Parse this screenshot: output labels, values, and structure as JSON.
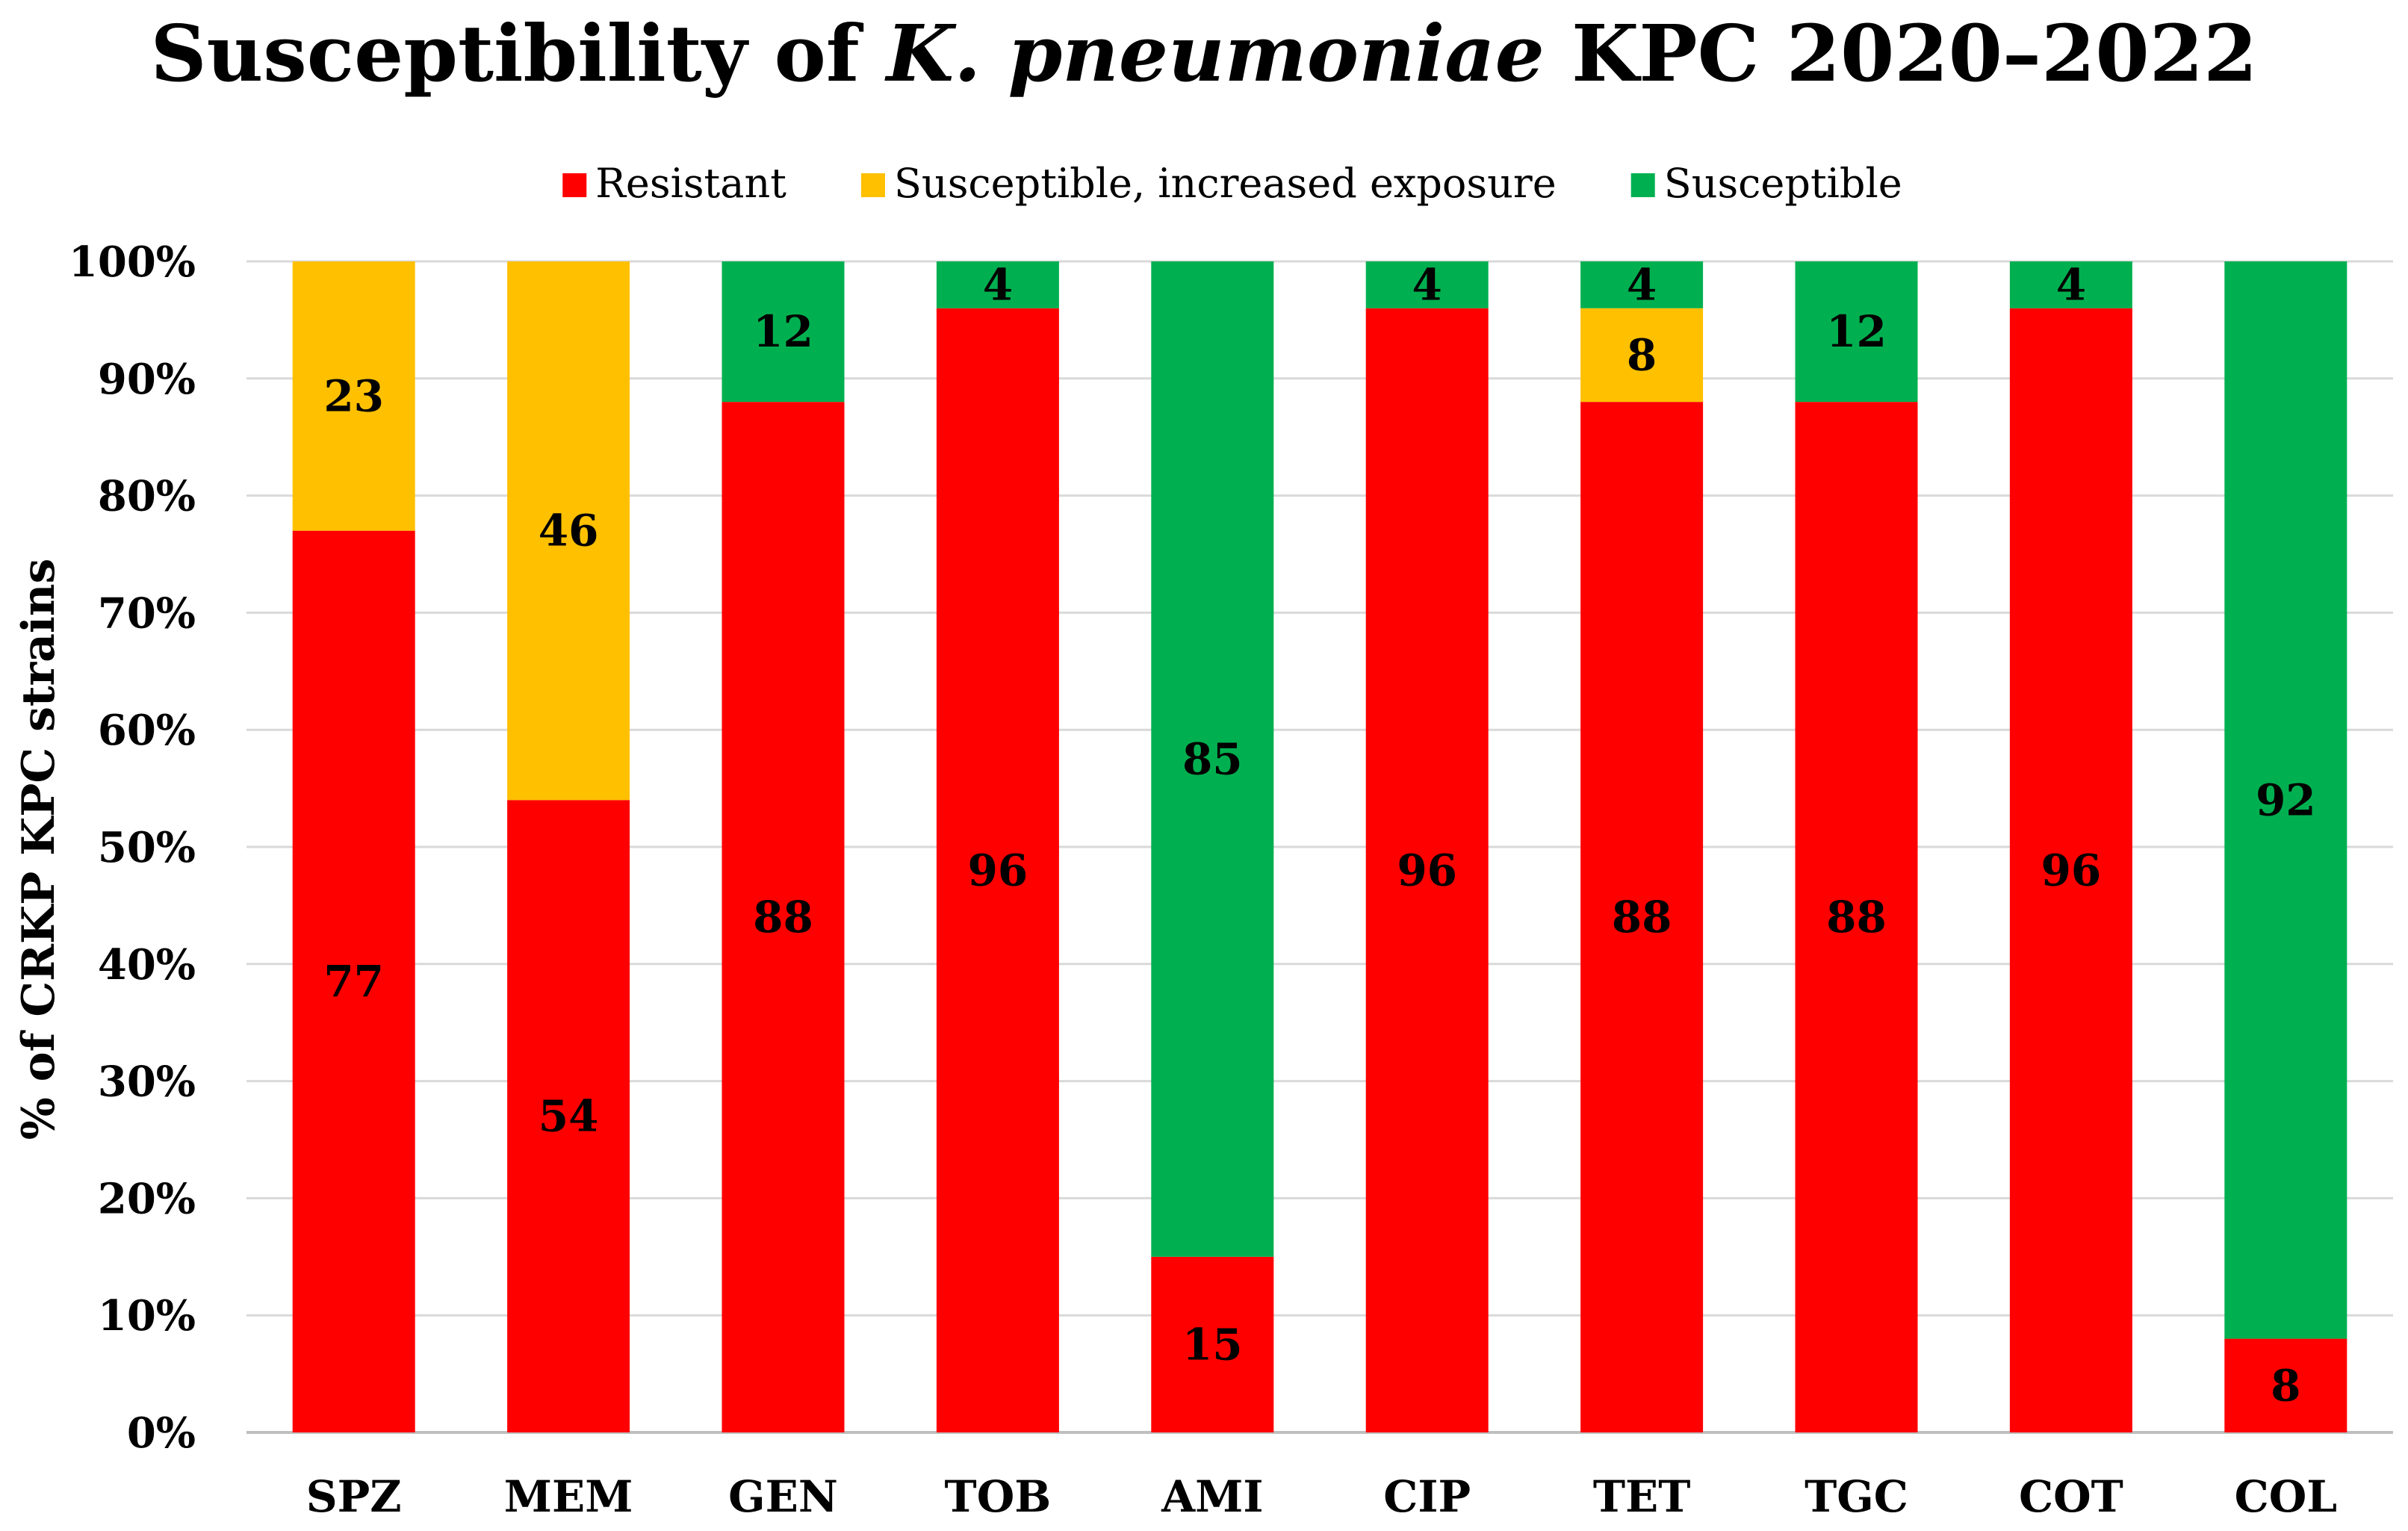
{
  "chart_data": {
    "type": "bar",
    "stacked": true,
    "title_parts": [
      {
        "text": "Susceptibility of ",
        "italic": false
      },
      {
        "text": "K. pneumoniae",
        "italic": true
      },
      {
        "text": " KPC 2020–2022",
        "italic": false
      }
    ],
    "ylabel": "% of CRKP KPC strains",
    "xlabel": "",
    "ylim": [
      0,
      100
    ],
    "yticks": [
      "0%",
      "10%",
      "20%",
      "30%",
      "40%",
      "50%",
      "60%",
      "70%",
      "80%",
      "90%",
      "100%"
    ],
    "grid": true,
    "legend_position": "top",
    "categories": [
      "SPZ",
      "MEM",
      "GEN",
      "TOB",
      "AMI",
      "CIP",
      "TET",
      "TGC",
      "COT",
      "COL"
    ],
    "series": [
      {
        "name": "Resistant",
        "color": "#ff0000",
        "values": [
          77,
          54,
          88,
          96,
          15,
          96,
          88,
          88,
          96,
          8
        ]
      },
      {
        "name": "Susceptible, increased exposure",
        "color": "#ffc000",
        "values": [
          23,
          46,
          0,
          0,
          0,
          0,
          8,
          0,
          0,
          0
        ]
      },
      {
        "name": "Susceptible",
        "color": "#00b050",
        "values": [
          0,
          0,
          12,
          4,
          85,
          4,
          4,
          12,
          4,
          92
        ]
      }
    ]
  }
}
